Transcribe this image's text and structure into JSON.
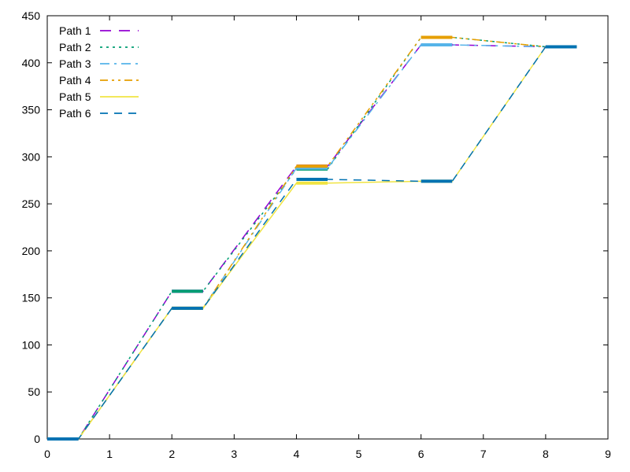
{
  "chart_data": {
    "type": "line",
    "title": "",
    "xlabel": "",
    "ylabel": "",
    "xlim": [
      0,
      9
    ],
    "ylim": [
      0,
      450
    ],
    "xticks": [
      0,
      1,
      2,
      3,
      4,
      5,
      6,
      7,
      8,
      9
    ],
    "yticks": [
      0,
      50,
      100,
      150,
      200,
      250,
      300,
      350,
      400,
      450
    ],
    "grid": false,
    "legend_position": "top-left",
    "series": [
      {
        "name": "Path 1",
        "color": "#9400d3",
        "dash": "long-dash",
        "points": [
          [
            0,
            0
          ],
          [
            0.5,
            0
          ],
          [
            2,
            157
          ],
          [
            2.5,
            157
          ],
          [
            4,
            290
          ],
          [
            4.5,
            290
          ],
          [
            6,
            419
          ],
          [
            6.5,
            419
          ],
          [
            8,
            417
          ],
          [
            8.5,
            417
          ]
        ]
      },
      {
        "name": "Path 2",
        "color": "#009e73",
        "dash": "dot",
        "points": [
          [
            0,
            0
          ],
          [
            0.5,
            0
          ],
          [
            2,
            157
          ],
          [
            2.5,
            157
          ],
          [
            4,
            287
          ],
          [
            4.5,
            287
          ],
          [
            6,
            427
          ],
          [
            6.5,
            427
          ],
          [
            8,
            417
          ],
          [
            8.5,
            417
          ]
        ]
      },
      {
        "name": "Path 3",
        "color": "#56b4e9",
        "dash": "dash-dot",
        "points": [
          [
            0,
            0
          ],
          [
            0.5,
            0
          ],
          [
            2,
            139
          ],
          [
            2.5,
            139
          ],
          [
            4,
            288
          ],
          [
            4.5,
            288
          ],
          [
            6,
            419
          ],
          [
            6.5,
            419
          ],
          [
            8,
            417
          ],
          [
            8.5,
            417
          ]
        ]
      },
      {
        "name": "Path 4",
        "color": "#e69f00",
        "dash": "dash-dot-dot",
        "points": [
          [
            0,
            0
          ],
          [
            0.5,
            0
          ],
          [
            2,
            139
          ],
          [
            2.5,
            139
          ],
          [
            4,
            290
          ],
          [
            4.5,
            290
          ],
          [
            6,
            427
          ],
          [
            6.5,
            427
          ],
          [
            8,
            417
          ],
          [
            8.5,
            417
          ]
        ]
      },
      {
        "name": "Path 5",
        "color": "#f0e442",
        "dash": "solid",
        "points": [
          [
            0,
            0
          ],
          [
            0.5,
            0
          ],
          [
            2,
            139
          ],
          [
            2.5,
            139
          ],
          [
            4,
            272
          ],
          [
            4.5,
            272
          ],
          [
            6,
            274
          ],
          [
            6.5,
            274
          ],
          [
            8,
            417
          ],
          [
            8.5,
            417
          ]
        ]
      },
      {
        "name": "Path 6",
        "color": "#0072b2",
        "dash": "dash",
        "points": [
          [
            0,
            0
          ],
          [
            0.5,
            0
          ],
          [
            2,
            139
          ],
          [
            2.5,
            139
          ],
          [
            4,
            276
          ],
          [
            4.5,
            276
          ],
          [
            6,
            274
          ],
          [
            6.5,
            274
          ],
          [
            8,
            417
          ],
          [
            8.5,
            417
          ]
        ]
      }
    ]
  }
}
